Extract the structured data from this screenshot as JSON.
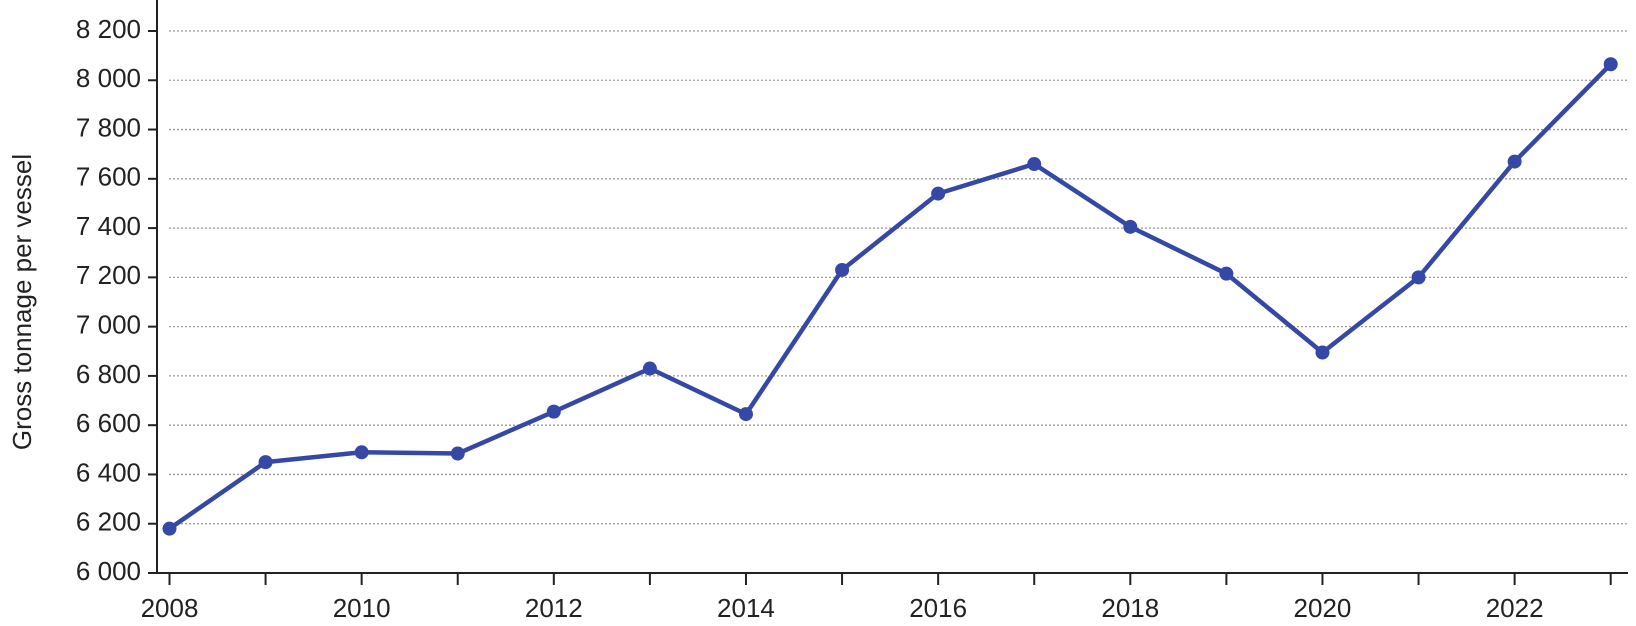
{
  "chart_data": {
    "type": "line",
    "y_label": "Gross tonnage per vessel",
    "x": [
      2008,
      2009,
      2010,
      2011,
      2012,
      2013,
      2014,
      2015,
      2016,
      2017,
      2018,
      2019,
      2020,
      2021,
      2022,
      2023
    ],
    "series": [
      {
        "color": "#3548a6",
        "values": [
          6180,
          6450,
          6490,
          6485,
          6655,
          6830,
          6645,
          7230,
          7540,
          7660,
          7405,
          7215,
          6895,
          7200,
          7670,
          8065
        ]
      }
    ],
    "xlim": [
      2007.87,
      2023.18
    ],
    "xticks": [
      2008,
      2010,
      2012,
      2014,
      2016,
      2018,
      2020,
      2022
    ],
    "xminorticks": [
      2009,
      2011,
      2013,
      2015,
      2017,
      2019,
      2021,
      2023
    ],
    "ylim": [
      6000,
      8200
    ],
    "yticks": [
      {
        "value": 6000,
        "label": "6 000"
      },
      {
        "value": 6200,
        "label": "6 200"
      },
      {
        "value": 6400,
        "label": "6 400"
      },
      {
        "value": 6600,
        "label": "6 600"
      },
      {
        "value": 6800,
        "label": "6 800"
      },
      {
        "value": 7000,
        "label": "7 000"
      },
      {
        "value": 7200,
        "label": "7 200"
      },
      {
        "value": 7400,
        "label": "7 400"
      },
      {
        "value": 7600,
        "label": "7 600"
      },
      {
        "value": 7800,
        "label": "7 800"
      },
      {
        "value": 8000,
        "label": "8 000"
      },
      {
        "value": 8200,
        "label": "8 200"
      }
    ],
    "grid": true
  }
}
